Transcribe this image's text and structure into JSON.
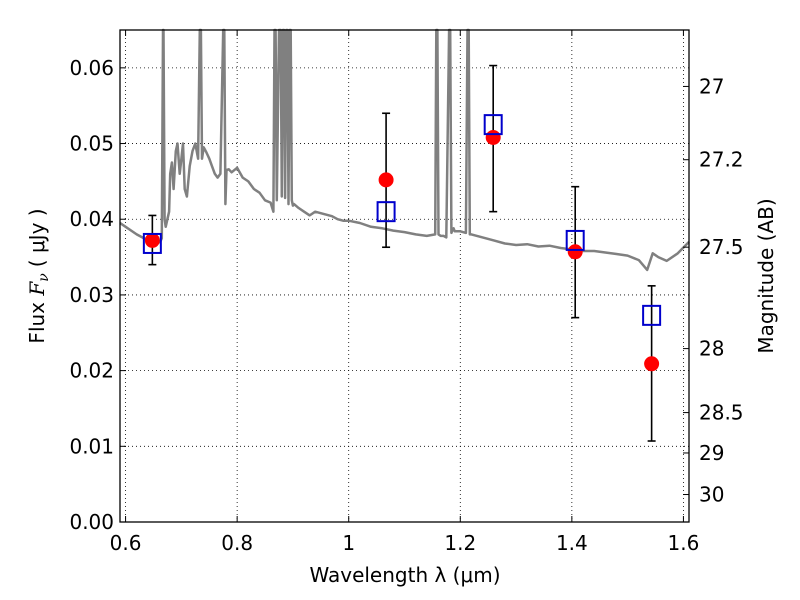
{
  "chart_data": {
    "type": "scatter",
    "title": "",
    "xlabel": "Wavelength  λ (μm)",
    "ylabel_parts": {
      "prefix": "Flux  ",
      "symbol": "F",
      "subscript": "ν",
      "unit": "( μJy )"
    },
    "y2label": "Magnitude (AB)",
    "xlim": [
      0.59,
      1.61
    ],
    "ylim": [
      0.0,
      0.065
    ],
    "grid": true,
    "x_ticks": [
      {
        "value": 0.6,
        "label": "0.6"
      },
      {
        "value": 0.8,
        "label": "0.8"
      },
      {
        "value": 1.0,
        "label": "1"
      },
      {
        "value": 1.2,
        "label": "1.2"
      },
      {
        "value": 1.4,
        "label": "1.4"
      },
      {
        "value": 1.6,
        "label": "1.6"
      }
    ],
    "y_ticks": [
      {
        "value": 0.0,
        "label": "0.00"
      },
      {
        "value": 0.01,
        "label": "0.01"
      },
      {
        "value": 0.02,
        "label": "0.02"
      },
      {
        "value": 0.03,
        "label": "0.03"
      },
      {
        "value": 0.04,
        "label": "0.04"
      },
      {
        "value": 0.05,
        "label": "0.05"
      },
      {
        "value": 0.06,
        "label": "0.06"
      }
    ],
    "y2_ticks": [
      {
        "magnitude": 27,
        "label": "27"
      },
      {
        "magnitude": 27.2,
        "label": "27.2"
      },
      {
        "magnitude": 27.5,
        "label": "27.5"
      },
      {
        "magnitude": 28,
        "label": "28"
      },
      {
        "magnitude": 28.5,
        "label": "28.5"
      },
      {
        "magnitude": 29,
        "label": "29"
      },
      {
        "magnitude": 30,
        "label": "30"
      }
    ],
    "series": [
      {
        "kind": "model-spectrum",
        "color": "#808080",
        "x": [
          0.59,
          0.6,
          0.62,
          0.64,
          0.655,
          0.662,
          0.665,
          0.667,
          0.668,
          0.67,
          0.672,
          0.675,
          0.678,
          0.68,
          0.683,
          0.686,
          0.69,
          0.693,
          0.697,
          0.7,
          0.703,
          0.706,
          0.71,
          0.715,
          0.72,
          0.725,
          0.73,
          0.733,
          0.735,
          0.737,
          0.74,
          0.745,
          0.75,
          0.755,
          0.76,
          0.765,
          0.77,
          0.775,
          0.777,
          0.779,
          0.781,
          0.785,
          0.79,
          0.8,
          0.81,
          0.82,
          0.83,
          0.84,
          0.85,
          0.86,
          0.865,
          0.867,
          0.869,
          0.871,
          0.875,
          0.878,
          0.88,
          0.882,
          0.884,
          0.886,
          0.888,
          0.89,
          0.892,
          0.894,
          0.896,
          0.898,
          0.9,
          0.902,
          0.91,
          0.92,
          0.93,
          0.94,
          0.95,
          0.96,
          0.97,
          0.98,
          0.99,
          1.0,
          1.02,
          1.04,
          1.06,
          1.08,
          1.1,
          1.12,
          1.14,
          1.155,
          1.157,
          1.159,
          1.161,
          1.165,
          1.17,
          1.175,
          1.18,
          1.182,
          1.184,
          1.186,
          1.188,
          1.19,
          1.2,
          1.21,
          1.213,
          1.215,
          1.217,
          1.22,
          1.24,
          1.26,
          1.28,
          1.3,
          1.32,
          1.34,
          1.36,
          1.38,
          1.4,
          1.42,
          1.44,
          1.46,
          1.48,
          1.5,
          1.52,
          1.535,
          1.545,
          1.555,
          1.57,
          1.59,
          1.61
        ],
        "y": [
          0.0395,
          0.039,
          0.038,
          0.0372,
          0.0368,
          0.037,
          0.0375,
          0.065,
          0.065,
          0.04,
          0.039,
          0.04,
          0.041,
          0.046,
          0.0475,
          0.044,
          0.049,
          0.05,
          0.046,
          0.048,
          0.05,
          0.044,
          0.043,
          0.047,
          0.049,
          0.05,
          0.048,
          0.065,
          0.065,
          0.048,
          0.0495,
          0.0488,
          0.048,
          0.047,
          0.046,
          0.0455,
          0.046,
          0.065,
          0.065,
          0.042,
          0.0465,
          0.0466,
          0.0462,
          0.0468,
          0.0455,
          0.045,
          0.044,
          0.0435,
          0.0425,
          0.0422,
          0.041,
          0.065,
          0.065,
          0.0425,
          0.065,
          0.065,
          0.043,
          0.065,
          0.065,
          0.0428,
          0.065,
          0.065,
          0.042,
          0.065,
          0.065,
          0.0425,
          0.0418,
          0.042,
          0.0415,
          0.041,
          0.0405,
          0.041,
          0.0408,
          0.0406,
          0.0404,
          0.04,
          0.0398,
          0.0398,
          0.0395,
          0.039,
          0.0388,
          0.0385,
          0.0383,
          0.038,
          0.0378,
          0.038,
          0.065,
          0.065,
          0.038,
          0.0378,
          0.0378,
          0.0376,
          0.065,
          0.065,
          0.0382,
          0.0386,
          0.0388,
          0.0384,
          0.0384,
          0.0382,
          0.065,
          0.065,
          0.038,
          0.038,
          0.0376,
          0.0372,
          0.0368,
          0.0366,
          0.0367,
          0.0364,
          0.0365,
          0.0362,
          0.036,
          0.0358,
          0.0358,
          0.0356,
          0.0354,
          0.0352,
          0.0346,
          0.0333,
          0.0355,
          0.035,
          0.0345,
          0.0355,
          0.037
        ]
      },
      {
        "kind": "observed",
        "marker": "circle",
        "color": "#ff0000",
        "x": [
          0.648,
          1.067,
          1.259,
          1.406,
          1.543
        ],
        "y": [
          0.0372,
          0.0452,
          0.0508,
          0.0357,
          0.0209
        ]
      },
      {
        "kind": "observed-error",
        "color": "#000000",
        "x": [
          0.648,
          1.067,
          1.259,
          1.406,
          1.543
        ],
        "y_low": [
          0.034,
          0.0363,
          0.041,
          0.027,
          0.0107
        ],
        "y_high": [
          0.0405,
          0.054,
          0.0603,
          0.0443,
          0.0312
        ]
      },
      {
        "kind": "model-photometry",
        "marker": "square",
        "color": "#0000cc",
        "x": [
          0.648,
          1.067,
          1.259,
          1.406,
          1.543
        ],
        "y": [
          0.0368,
          0.041,
          0.0525,
          0.0372,
          0.0273
        ]
      }
    ]
  }
}
